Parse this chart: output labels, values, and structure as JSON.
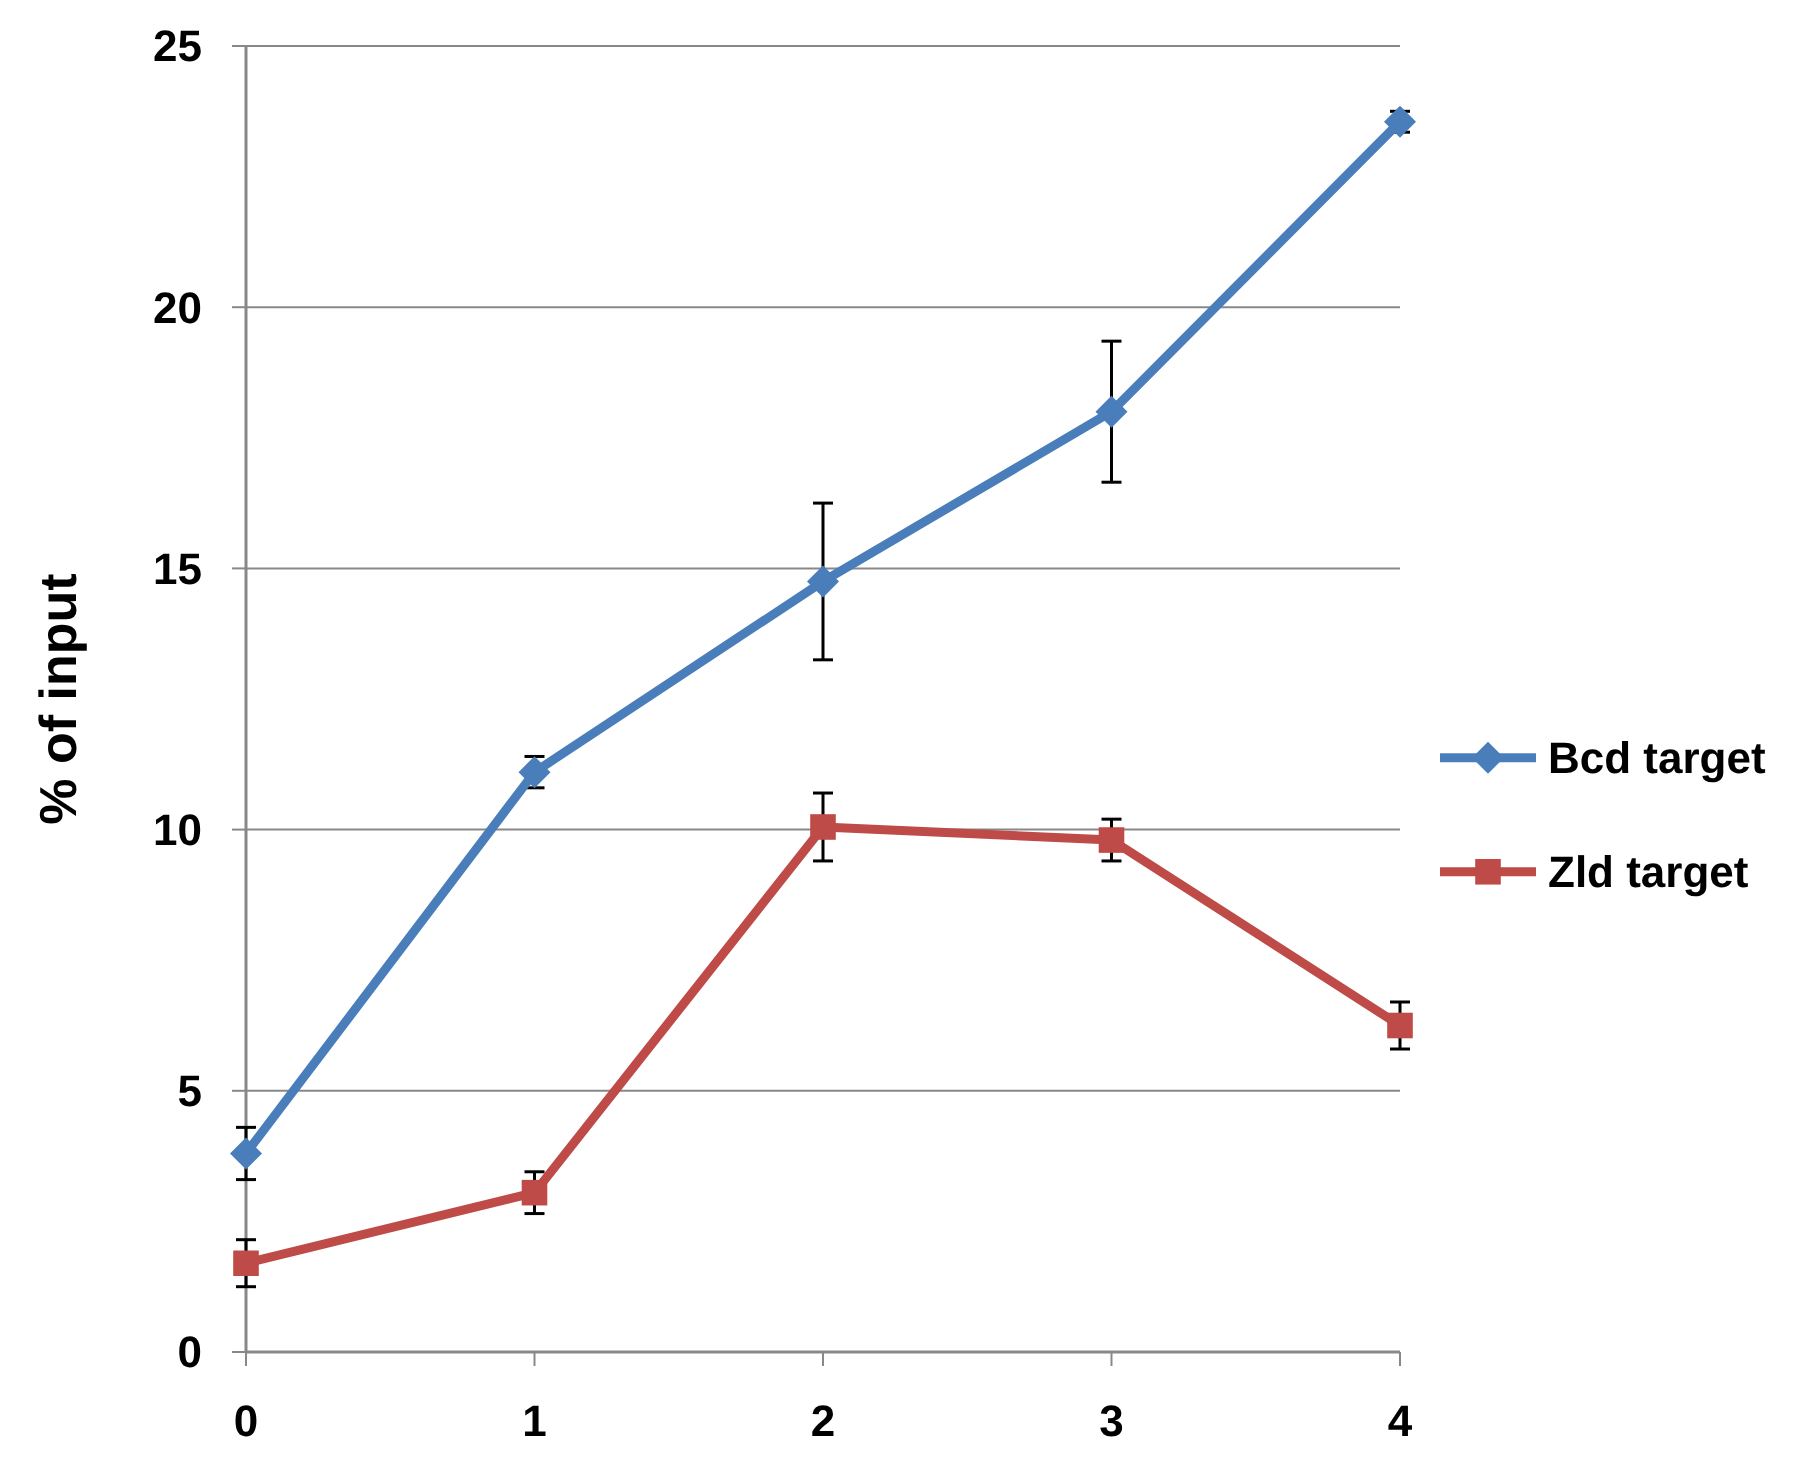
{
  "chart_data": {
    "type": "line",
    "ylabel": "% of input",
    "x": [
      0,
      1,
      2,
      3,
      4
    ],
    "xlim": [
      0,
      4
    ],
    "xticks": [
      0,
      1,
      2,
      3,
      4
    ],
    "ylim": [
      0,
      25
    ],
    "yticks": [
      0,
      5,
      10,
      15,
      20,
      25
    ],
    "grid": "y",
    "legend": "right",
    "line_style": "solid",
    "series": [
      {
        "name": "Bcd target",
        "color": "#4a7ebb",
        "marker": "diamond",
        "values": [
          3.8,
          11.1,
          14.75,
          18.0,
          23.55
        ],
        "errors": [
          0.5,
          0.3,
          1.5,
          1.35,
          0.2
        ]
      },
      {
        "name": "Zld target",
        "color": "#be4b48",
        "marker": "square",
        "values": [
          1.7,
          3.05,
          10.05,
          9.8,
          6.25
        ],
        "errors": [
          0.45,
          0.4,
          0.65,
          0.4,
          0.45
        ]
      }
    ]
  }
}
